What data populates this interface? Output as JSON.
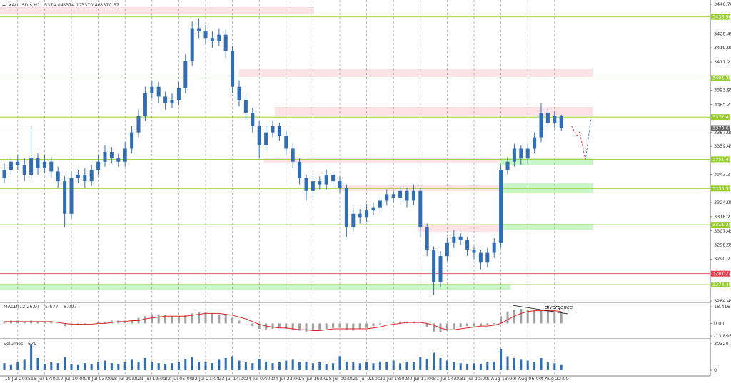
{
  "chart_data": [
    {
      "type": "candlestick",
      "title": "XAUUSD.s,H1",
      "header_values": [
        3374.04,
        3374.17,
        3370.46,
        3370.67
      ],
      "color": "#2f6db5",
      "categories": [
        null,
        null,
        "15 Jul 2025",
        null,
        null,
        null,
        "16 Jul 17:00",
        null,
        null,
        null,
        "17 Jul 10:00",
        null,
        null,
        null,
        "18 Jul 03:00",
        null,
        null,
        null,
        "18 Jul 19:00",
        null,
        null,
        null,
        "21 Jul 12:00",
        null,
        null,
        null,
        "22 Jul 05:00",
        null,
        null,
        null,
        "22 Jul 21:00",
        null,
        null,
        null,
        "23 Jul 14:00",
        null,
        null,
        null,
        "24 Jul 07:00",
        null,
        null,
        null,
        "24 Jul 23:00",
        null,
        null,
        null,
        "25 Jul 16:00",
        null,
        null,
        null,
        "28 Jul 09:00",
        null,
        null,
        null,
        "29 Jul 02:00",
        null,
        null,
        null,
        "29 Jul 18:00",
        null,
        null,
        null,
        "30 Jul 11:00",
        null,
        null,
        null,
        "31 Jul 04:00",
        null,
        null,
        null,
        "31 Jul 20:00",
        null,
        null,
        null,
        "1 Aug 13:00",
        null,
        null,
        null,
        "4 Aug 06:00",
        null,
        null,
        null,
        "4 Aug 22:00",
        null
      ],
      "open": [
        3340,
        3345,
        3350,
        3348,
        3342,
        3352,
        3346,
        3350,
        3344,
        3338,
        3318,
        3340,
        3342,
        3338,
        3345,
        3350,
        3356,
        3352,
        3350,
        3358,
        3368,
        3378,
        3392,
        3396,
        3390,
        3386,
        3388,
        3395,
        3412,
        3432,
        3430,
        3426,
        3424,
        3428,
        3418,
        3396,
        3388,
        3380,
        3372,
        3360,
        3368,
        3372,
        3366,
        3358,
        3350,
        3340,
        3332,
        3338,
        3336,
        3342,
        3338,
        3334,
        3310,
        3318,
        3316,
        3320,
        3322,
        3326,
        3330,
        3328,
        3332,
        3326,
        3332,
        3310,
        3296,
        3276,
        3292,
        3300,
        3304,
        3302,
        3296,
        3294,
        3288,
        3294,
        3300,
        3345,
        3350,
        3358,
        3352,
        3358,
        3365,
        3380,
        3374,
        3378
      ],
      "high": [
        3349,
        3353,
        3354,
        3352,
        3372,
        3355,
        3354,
        3353,
        3347,
        3341,
        3344,
        3345,
        3346,
        3348,
        3354,
        3360,
        3359,
        3355,
        3362,
        3372,
        3382,
        3396,
        3400,
        3399,
        3393,
        3392,
        3399,
        3416,
        3436,
        3438,
        3434,
        3430,
        3432,
        3431,
        3421,
        3400,
        3391,
        3383,
        3375,
        3372,
        3375,
        3374,
        3369,
        3361,
        3352,
        3342,
        3342,
        3341,
        3345,
        3344,
        3341,
        3336,
        3322,
        3321,
        3324,
        3325,
        3329,
        3333,
        3332,
        3335,
        3334,
        3336,
        3334,
        3312,
        3298,
        3295,
        3303,
        3308,
        3306,
        3304,
        3298,
        3296,
        3297,
        3303,
        3348,
        3353,
        3361,
        3360,
        3361,
        3368,
        3386,
        3383,
        3381,
        3379
      ],
      "low": [
        3337,
        3342,
        3345,
        3338,
        3339,
        3342,
        3343,
        3340,
        3334,
        3310,
        3315,
        3337,
        3334,
        3335,
        3342,
        3347,
        3349,
        3347,
        3347,
        3355,
        3365,
        3375,
        3389,
        3386,
        3382,
        3383,
        3385,
        3392,
        3409,
        3426,
        3422,
        3420,
        3421,
        3414,
        3392,
        3384,
        3376,
        3368,
        3352,
        3357,
        3365,
        3363,
        3354,
        3346,
        3336,
        3326,
        3329,
        3333,
        3333,
        3335,
        3331,
        3304,
        3307,
        3312,
        3313,
        3317,
        3319,
        3323,
        3325,
        3325,
        3322,
        3323,
        3304,
        3292,
        3268,
        3273,
        3289,
        3297,
        3299,
        3292,
        3290,
        3284,
        3285,
        3291,
        3297,
        3342,
        3347,
        3348,
        3349,
        3355,
        3362,
        3370,
        3371,
        3369
      ],
      "close": [
        3345,
        3350,
        3348,
        3342,
        3352,
        3346,
        3350,
        3344,
        3338,
        3318,
        3340,
        3342,
        3338,
        3345,
        3350,
        3356,
        3352,
        3350,
        3358,
        3368,
        3378,
        3392,
        3396,
        3390,
        3386,
        3388,
        3395,
        3412,
        3432,
        3430,
        3426,
        3424,
        3428,
        3418,
        3396,
        3388,
        3380,
        3372,
        3360,
        3368,
        3372,
        3366,
        3358,
        3350,
        3340,
        3332,
        3338,
        3336,
        3342,
        3338,
        3334,
        3310,
        3318,
        3316,
        3320,
        3322,
        3326,
        3330,
        3328,
        3332,
        3326,
        3332,
        3310,
        3296,
        3276,
        3292,
        3300,
        3304,
        3302,
        3296,
        3294,
        3288,
        3294,
        3300,
        3345,
        3350,
        3358,
        3352,
        3358,
        3365,
        3380,
        3374,
        3378,
        3370.67
      ],
      "ylim": [
        3264.45,
        3446.7
      ],
      "yticks": [
        {
          "value": 3446.7,
          "label": "3446.70"
        },
        3428.45,
        3419.95,
        3411.2,
        3393.95,
        3385.2,
        3367.95,
        3359.45,
        3342.2,
        3324.95,
        3316.2,
        3307.45,
        3298.95,
        3290.2,
        3264.45
      ],
      "levels": [
        3438.96,
        3401.38,
        3377.43,
        3351.45,
        3333.53,
        3311.28,
        3281.22,
        3274.49
      ],
      "level_colors": [
        "#9acd32",
        "#9acd32",
        "#9acd32",
        "#9acd32",
        "#9acd32",
        "#9acd32",
        "#e0474c",
        "#9acd32"
      ],
      "grid": true
    },
    {
      "type": "macd",
      "title": "MACD(12,26,9)",
      "header_values": [
        5.677,
        8.097
      ],
      "annotation": "divergence",
      "values": [
        2,
        3,
        3,
        2,
        3,
        2,
        2,
        1,
        0,
        -3,
        -2,
        -1,
        -1,
        0,
        1,
        2,
        3,
        3,
        3,
        4,
        6,
        8,
        10,
        10,
        9,
        8,
        8,
        9,
        11,
        13,
        12,
        11,
        10,
        9,
        6,
        3,
        0,
        -3,
        -6,
        -7,
        -6,
        -5,
        -6,
        -7,
        -8,
        -9,
        -8,
        -7,
        -6,
        -5,
        -5,
        -7,
        -8,
        -6,
        -5,
        -3,
        -1,
        0,
        1,
        2,
        2,
        2,
        0,
        -4,
        -9,
        -10,
        -8,
        -6,
        -4,
        -3,
        -3,
        -3,
        -2,
        -1,
        8,
        13,
        15,
        16,
        15,
        15,
        15,
        14,
        13,
        12
      ],
      "signal": [
        2,
        2,
        2,
        2,
        2,
        2,
        2,
        2,
        1,
        0,
        -1,
        -1,
        -1,
        -1,
        0,
        0,
        1,
        2,
        2,
        3,
        3,
        5,
        6,
        7,
        8,
        8,
        8,
        8,
        9,
        10,
        11,
        11,
        11,
        10,
        9,
        7,
        5,
        2,
        -1,
        -3,
        -4,
        -5,
        -5,
        -6,
        -7,
        -7,
        -8,
        -8,
        -7,
        -6,
        -6,
        -6,
        -6,
        -6,
        -6,
        -5,
        -4,
        -2,
        -1,
        0,
        1,
        1,
        1,
        0,
        -2,
        -5,
        -7,
        -7,
        -6,
        -5,
        -4,
        -3,
        -3,
        -2,
        0,
        4,
        8,
        11,
        13,
        14,
        14,
        14,
        14,
        13
      ],
      "color": "#a0a0a0",
      "signal_color": "#d62728",
      "ylim": [
        -13.895,
        18.416
      ],
      "yticks": [
        18.416,
        {
          "value": 0,
          "label": "0.00"
        },
        -13.895
      ]
    },
    {
      "type": "volume",
      "title": "Volumes",
      "header_values": [
        679
      ],
      "color": "#2f6db5",
      "values": [
        8000,
        6000,
        9000,
        12000,
        29000,
        14000,
        7000,
        9000,
        8000,
        15000,
        7000,
        6000,
        8000,
        7000,
        9000,
        11000,
        8000,
        7000,
        9000,
        12000,
        10000,
        14000,
        9000,
        8000,
        7000,
        8000,
        9000,
        13000,
        15000,
        10000,
        9000,
        8000,
        12000,
        14000,
        16000,
        11000,
        9000,
        8000,
        13000,
        10000,
        8000,
        9000,
        11000,
        12000,
        9000,
        10000,
        8000,
        9000,
        7000,
        8000,
        16000,
        10000,
        9000,
        8000,
        9000,
        8000,
        10000,
        9000,
        11000,
        8000,
        10000,
        9000,
        15000,
        13000,
        20000,
        14000,
        11000,
        9000,
        8000,
        7000,
        8000,
        7000,
        9000,
        10000,
        24000,
        16000,
        14000,
        12000,
        11000,
        9000,
        14000,
        9000,
        8000,
        6000
      ],
      "ylim": [
        0,
        30320
      ],
      "yticks": [
        30320,
        0
      ]
    }
  ]
}
